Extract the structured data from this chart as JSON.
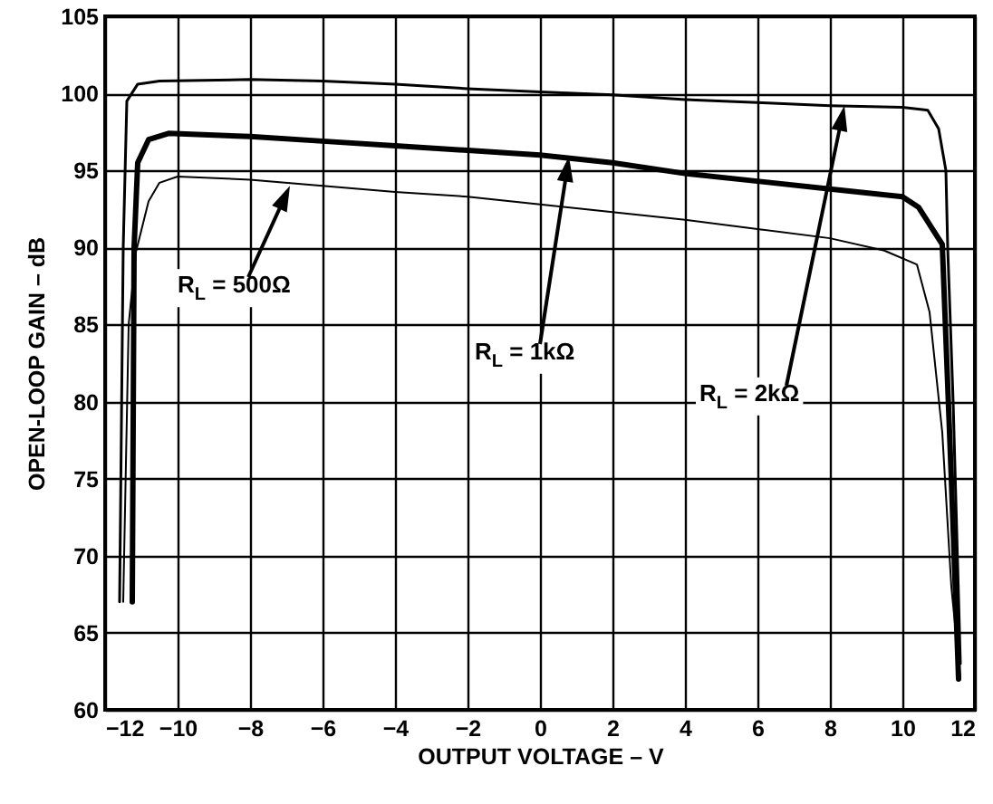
{
  "chart_data": {
    "type": "line",
    "xlabel": "OUTPUT VOLTAGE – V",
    "ylabel": "OPEN-LOOP GAIN – dB",
    "xlim": [
      -12,
      12
    ],
    "xticks": [
      -12,
      -10,
      -8,
      -6,
      -4,
      -2,
      0,
      2,
      4,
      6,
      8,
      10,
      12
    ],
    "ylim": [
      60,
      105
    ],
    "yticks": [
      60,
      65,
      70,
      75,
      80,
      85,
      90,
      95,
      100,
      105
    ],
    "grid": true,
    "line_style": "solid",
    "series": [
      {
        "color": "#000000",
        "x": [
          -11.5,
          -11.35,
          -11.15,
          -10.8,
          -10.5,
          -10,
          -8,
          -6,
          -4,
          -2,
          0,
          2,
          4,
          6,
          8,
          9.5,
          10.4,
          10.75,
          11.1,
          11.35,
          11.6
        ],
        "values": [
          67,
          85,
          89.7,
          93,
          94.2,
          94.6,
          94.4,
          94.0,
          93.6,
          93.3,
          92.8,
          92.3,
          91.8,
          91.2,
          90.6,
          89.8,
          88.9,
          85.8,
          78,
          68,
          62
        ]
      },
      {
        "color": "#000000",
        "x": [
          -11.25,
          -11.2,
          -11.1,
          -10.8,
          -10.25,
          -8,
          -6,
          -4,
          -2,
          0,
          2,
          4,
          6,
          8,
          10,
          10.45,
          11.1,
          11.35,
          11.55
        ],
        "values": [
          67,
          90,
          95.5,
          97.0,
          97.4,
          97.2,
          96.9,
          96.6,
          96.3,
          96.0,
          95.5,
          94.8,
          94.3,
          93.8,
          93.3,
          92.6,
          90.2,
          75,
          62
        ]
      },
      {
        "color": "#000000",
        "x": [
          -11.6,
          -11.5,
          -11.4,
          -11.1,
          -10.5,
          -8,
          -6,
          -4,
          -2,
          0,
          2,
          4,
          6,
          8,
          10,
          10.7,
          11.0,
          11.2,
          11.25,
          11.4,
          11.6
        ],
        "values": [
          67,
          90,
          99.5,
          100.6,
          100.8,
          100.9,
          100.8,
          100.6,
          100.3,
          100.1,
          99.9,
          99.6,
          99.4,
          99.2,
          99.1,
          98.9,
          97.7,
          95,
          90,
          80,
          63
        ]
      }
    ],
    "annotations": [
      "R$_{L}$ = 500Ω",
      "R$_{L}$ = 1kΩ",
      "R$_{L}$ = 2kΩ"
    ]
  }
}
